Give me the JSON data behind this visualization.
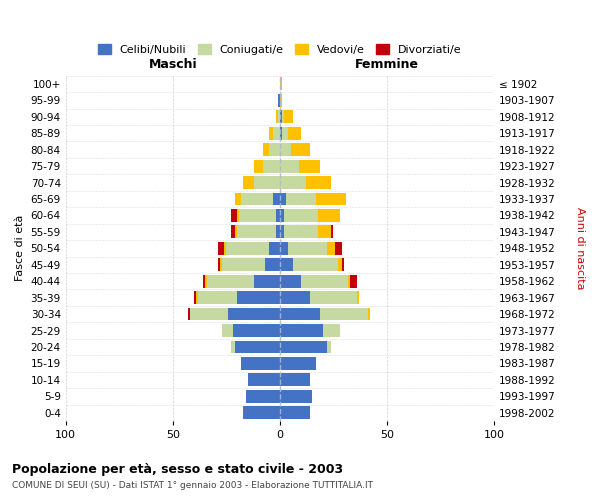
{
  "age_groups": [
    "0-4",
    "5-9",
    "10-14",
    "15-19",
    "20-24",
    "25-29",
    "30-34",
    "35-39",
    "40-44",
    "45-49",
    "50-54",
    "55-59",
    "60-64",
    "65-69",
    "70-74",
    "75-79",
    "80-84",
    "85-89",
    "90-94",
    "95-99",
    "100+"
  ],
  "birth_years": [
    "1998-2002",
    "1993-1997",
    "1988-1992",
    "1983-1987",
    "1978-1982",
    "1973-1977",
    "1968-1972",
    "1963-1967",
    "1958-1962",
    "1953-1957",
    "1948-1952",
    "1943-1947",
    "1938-1942",
    "1933-1937",
    "1928-1932",
    "1923-1927",
    "1918-1922",
    "1913-1917",
    "1908-1912",
    "1903-1907",
    "≤ 1902"
  ],
  "males_celibi": [
    17,
    16,
    15,
    18,
    21,
    22,
    24,
    20,
    12,
    7,
    5,
    2,
    2,
    3,
    0,
    0,
    0,
    0,
    0,
    1,
    0
  ],
  "males_coniugati": [
    0,
    0,
    0,
    0,
    2,
    5,
    18,
    18,
    22,
    20,
    20,
    18,
    17,
    15,
    12,
    8,
    5,
    3,
    1,
    0,
    0
  ],
  "males_vedovi": [
    0,
    0,
    0,
    0,
    0,
    0,
    0,
    1,
    1,
    1,
    1,
    1,
    1,
    3,
    5,
    4,
    3,
    2,
    1,
    0,
    0
  ],
  "males_divorziati": [
    0,
    0,
    0,
    0,
    0,
    0,
    1,
    1,
    1,
    1,
    3,
    2,
    3,
    0,
    0,
    0,
    0,
    0,
    0,
    0,
    0
  ],
  "females_celibi": [
    14,
    15,
    14,
    17,
    22,
    20,
    19,
    14,
    10,
    6,
    4,
    2,
    2,
    3,
    0,
    0,
    0,
    1,
    1,
    0,
    0
  ],
  "females_coniugati": [
    0,
    0,
    0,
    0,
    2,
    8,
    22,
    22,
    22,
    21,
    18,
    16,
    16,
    14,
    12,
    9,
    5,
    3,
    1,
    0,
    0
  ],
  "females_vedovi": [
    0,
    0,
    0,
    0,
    0,
    0,
    1,
    1,
    1,
    2,
    4,
    6,
    10,
    14,
    12,
    10,
    9,
    6,
    4,
    1,
    1
  ],
  "females_divorziati": [
    0,
    0,
    0,
    0,
    0,
    0,
    0,
    0,
    3,
    1,
    3,
    1,
    0,
    0,
    0,
    0,
    0,
    0,
    0,
    0,
    0
  ],
  "colors": {
    "celibi": "#4472c4",
    "coniugati": "#c5d9a0",
    "vedovi": "#ffc000",
    "divorziati": "#c0000b"
  },
  "title1": "Popolazione per età, sesso e stato civile - 2003",
  "title2": "COMUNE DI SEUI (SU) - Dati ISTAT 1° gennaio 2003 - Elaborazione TUTTITALIA.IT",
  "xlabel_left": "Maschi",
  "xlabel_right": "Femmine",
  "ylabel_left": "Fasce di età",
  "ylabel_right": "Anni di nascita",
  "xlim": 100,
  "legend_labels": [
    "Celibi/Nubili",
    "Coniugati/e",
    "Vedovi/e",
    "Divorziati/e"
  ],
  "background_color": "#ffffff",
  "plot_bg_color": "#ffffff",
  "grid_color": "#cccccc"
}
